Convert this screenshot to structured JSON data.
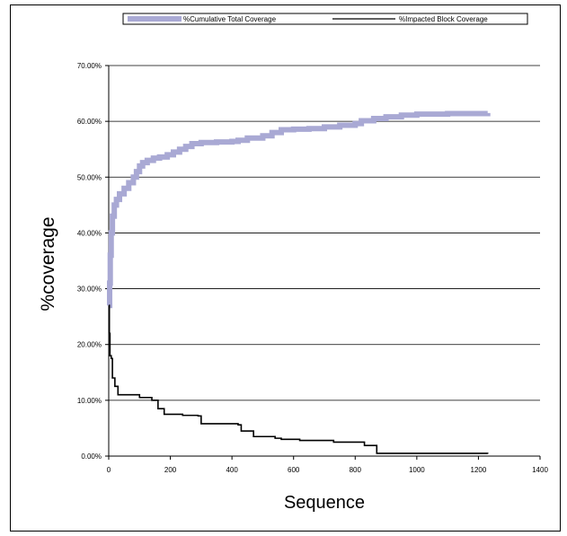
{
  "chart_data": {
    "type": "line",
    "xlabel": "Sequence",
    "ylabel": "%coverage",
    "xlim": [
      0,
      1400
    ],
    "ylim": [
      0,
      70
    ],
    "x_ticks": [
      "0",
      "200",
      "400",
      "600",
      "800",
      "1000",
      "1200",
      "1400"
    ],
    "y_ticks": [
      "0.00%",
      "10.00%",
      "20.00%",
      "30.00%",
      "40.00%",
      "50.00%",
      "60.00%",
      "70.00%"
    ],
    "grid": "horizontal",
    "legend_position": "top",
    "series": [
      {
        "name": "%Cumulative Total Coverage",
        "color": "#a9a9d4",
        "points": [
          [
            0,
            27
          ],
          [
            3,
            31
          ],
          [
            5,
            36
          ],
          [
            8,
            40
          ],
          [
            12,
            43
          ],
          [
            18,
            45
          ],
          [
            25,
            46
          ],
          [
            35,
            47
          ],
          [
            50,
            48
          ],
          [
            65,
            49
          ],
          [
            80,
            50
          ],
          [
            90,
            51
          ],
          [
            100,
            52
          ],
          [
            110,
            52.6
          ],
          [
            125,
            53
          ],
          [
            145,
            53.4
          ],
          [
            165,
            53.6
          ],
          [
            190,
            54
          ],
          [
            210,
            54.5
          ],
          [
            230,
            55
          ],
          [
            250,
            55.5
          ],
          [
            270,
            56
          ],
          [
            300,
            56.2
          ],
          [
            350,
            56.3
          ],
          [
            400,
            56.4
          ],
          [
            420,
            56.6
          ],
          [
            450,
            57
          ],
          [
            500,
            57.4
          ],
          [
            530,
            58
          ],
          [
            560,
            58.5
          ],
          [
            600,
            58.6
          ],
          [
            650,
            58.7
          ],
          [
            700,
            59
          ],
          [
            750,
            59.3
          ],
          [
            800,
            59.6
          ],
          [
            820,
            60.1
          ],
          [
            860,
            60.5
          ],
          [
            900,
            60.8
          ],
          [
            950,
            61.1
          ],
          [
            1000,
            61.3
          ],
          [
            1100,
            61.4
          ],
          [
            1230,
            61.5
          ]
        ]
      },
      {
        "name": "%Impacted Block Coverage",
        "color": "#000000",
        "steps": [
          [
            0,
            27
          ],
          [
            2,
            22
          ],
          [
            4,
            18
          ],
          [
            8,
            17.5
          ],
          [
            12,
            14
          ],
          [
            20,
            12.5
          ],
          [
            30,
            11
          ],
          [
            100,
            10.5
          ],
          [
            140,
            10
          ],
          [
            160,
            8.5
          ],
          [
            180,
            7.5
          ],
          [
            240,
            7.3
          ],
          [
            290,
            7.2
          ],
          [
            300,
            5.8
          ],
          [
            420,
            5.6
          ],
          [
            430,
            4.5
          ],
          [
            470,
            3.5
          ],
          [
            540,
            3.2
          ],
          [
            560,
            3
          ],
          [
            620,
            2.8
          ],
          [
            730,
            2.5
          ],
          [
            830,
            1.9
          ],
          [
            870,
            0.5
          ],
          [
            1230,
            0.4
          ]
        ]
      }
    ]
  }
}
